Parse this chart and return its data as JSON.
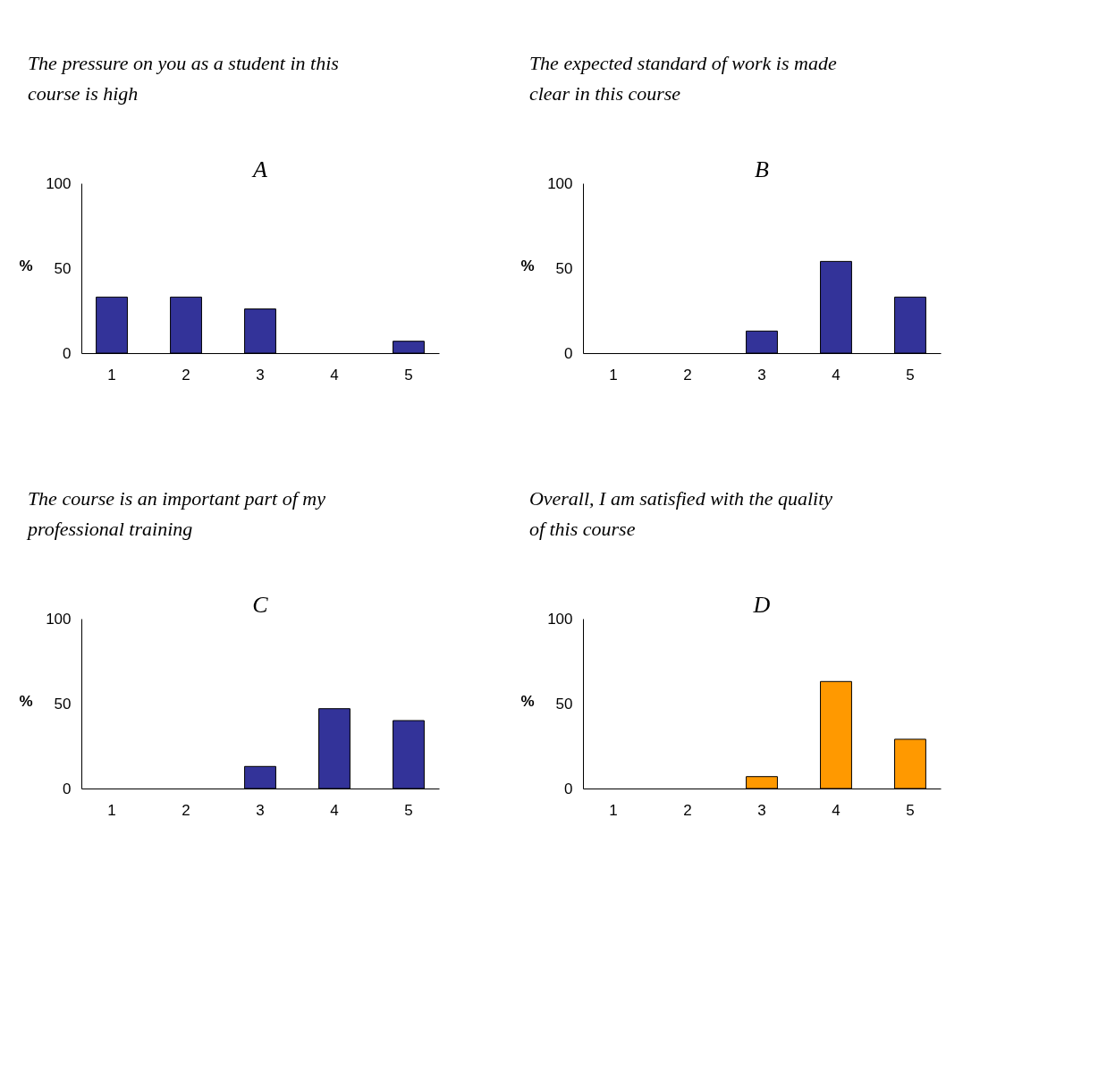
{
  "chart_data": [
    {
      "type": "bar",
      "title": "The pressure on you as a student in this course is high",
      "subtitle": "A",
      "ylabel": "%",
      "categories": [
        "1",
        "2",
        "3",
        "4",
        "5"
      ],
      "values": [
        33,
        33,
        26,
        0,
        7
      ],
      "color": "#333399",
      "ylim": [
        0,
        100
      ],
      "yticks": [
        0,
        50,
        100
      ]
    },
    {
      "type": "bar",
      "title": "The expected standard of work is made clear in this course",
      "subtitle": "B",
      "ylabel": "%",
      "categories": [
        "1",
        "2",
        "3",
        "4",
        "5"
      ],
      "values": [
        0,
        0,
        13,
        54,
        33
      ],
      "color": "#333399",
      "ylim": [
        0,
        100
      ],
      "yticks": [
        0,
        50,
        100
      ]
    },
    {
      "type": "bar",
      "title": "The course is an important part of my professional training",
      "subtitle": "C",
      "ylabel": "%",
      "categories": [
        "1",
        "2",
        "3",
        "4",
        "5"
      ],
      "values": [
        0,
        0,
        13,
        47,
        40
      ],
      "color": "#333399",
      "ylim": [
        0,
        100
      ],
      "yticks": [
        0,
        50,
        100
      ]
    },
    {
      "type": "bar",
      "title": "Overall, I am satisfied with the quality of this course",
      "subtitle": "D",
      "ylabel": "%",
      "categories": [
        "1",
        "2",
        "3",
        "4",
        "5"
      ],
      "values": [
        0,
        0,
        7,
        63,
        29
      ],
      "color": "#ff9900",
      "ylim": [
        0,
        100
      ],
      "yticks": [
        0,
        50,
        100
      ]
    }
  ]
}
